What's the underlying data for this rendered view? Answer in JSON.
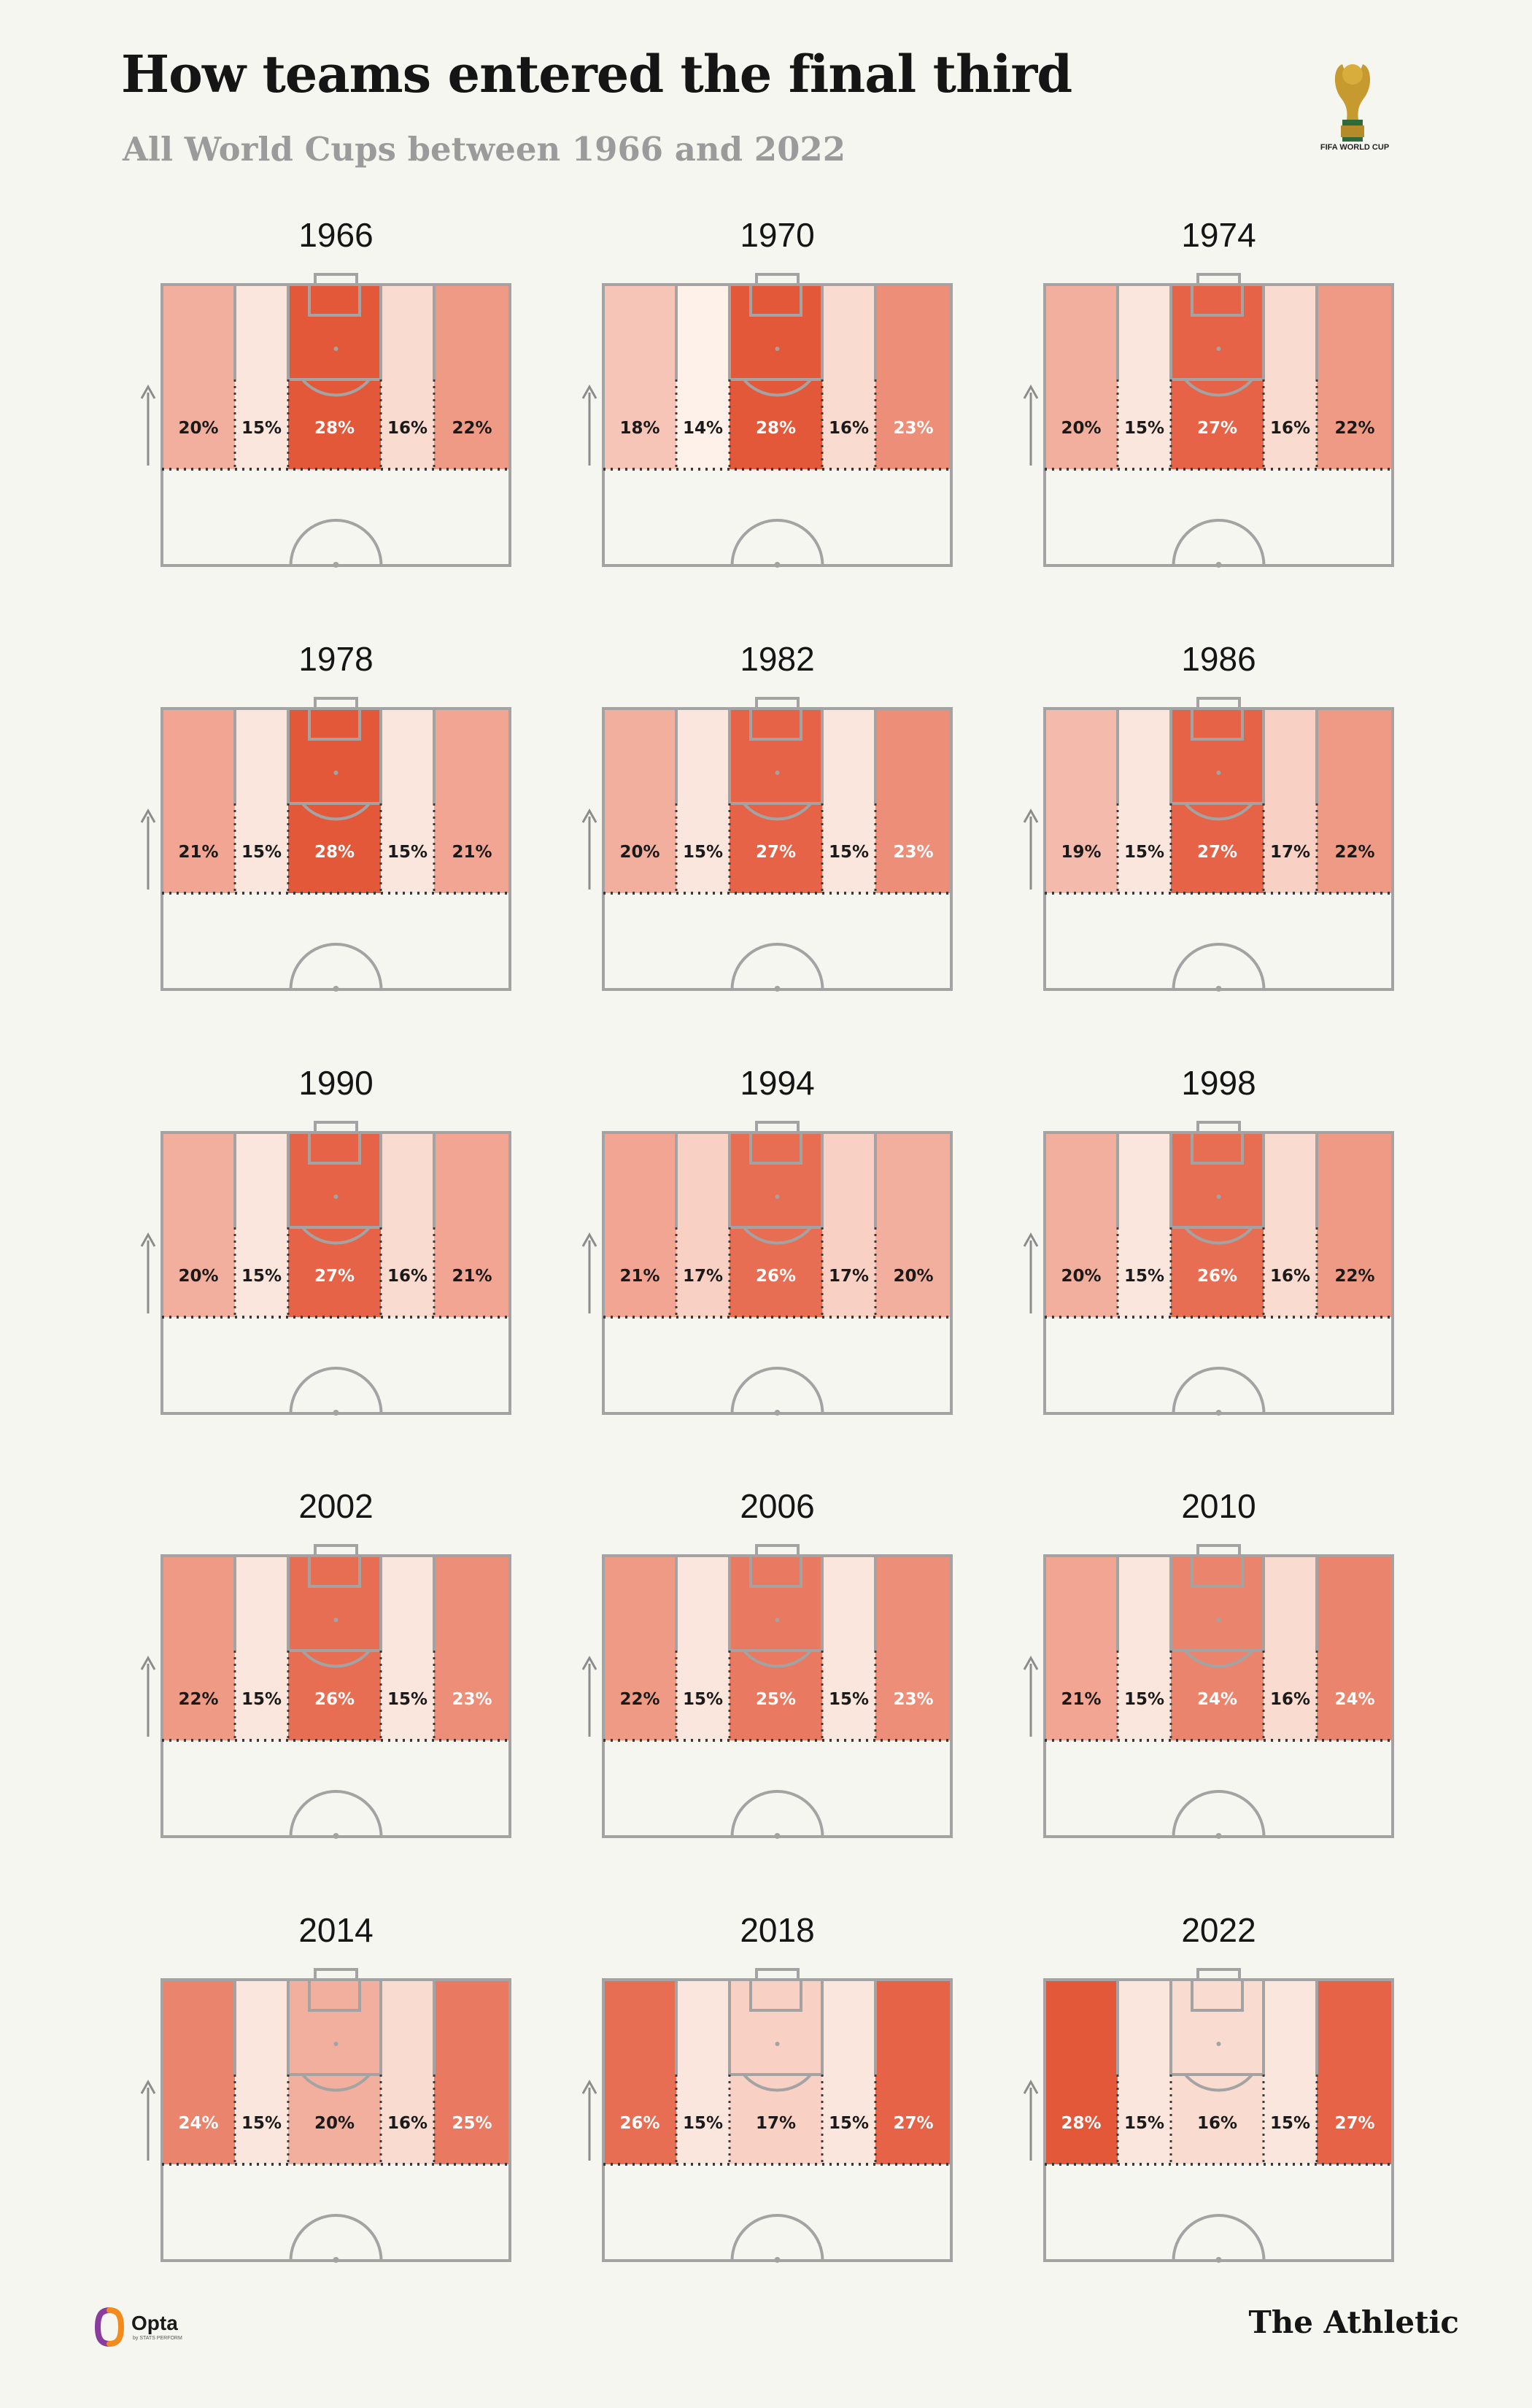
{
  "header": {
    "title": "How teams entered the final third",
    "subtitle": "All World Cups between 1966 and 2022",
    "logo_text": "FIFA WORLD CUP"
  },
  "footer": {
    "opta": "Opta",
    "opta_sub": "by STATS PERFORM",
    "publisher": "The Athletic"
  },
  "colors": {
    "background": "#f6f6f1",
    "scale_low": "#fdf1e9",
    "scale_high": "#e4583a",
    "pitch_lines": "#a3a3a3"
  },
  "chart_data": {
    "type": "heatmap",
    "columns": [
      "Left wing",
      "Left half-space",
      "Centre",
      "Right half-space",
      "Right wing"
    ],
    "panels": [
      {
        "year": "1966",
        "values": [
          20,
          15,
          28,
          16,
          22
        ]
      },
      {
        "year": "1970",
        "values": [
          18,
          14,
          28,
          16,
          23
        ]
      },
      {
        "year": "1974",
        "values": [
          20,
          15,
          27,
          16,
          22
        ]
      },
      {
        "year": "1978",
        "values": [
          21,
          15,
          28,
          15,
          21
        ]
      },
      {
        "year": "1982",
        "values": [
          20,
          15,
          27,
          15,
          23
        ]
      },
      {
        "year": "1986",
        "values": [
          19,
          15,
          27,
          17,
          22
        ]
      },
      {
        "year": "1990",
        "values": [
          20,
          15,
          27,
          16,
          21
        ]
      },
      {
        "year": "1994",
        "values": [
          21,
          17,
          26,
          17,
          20
        ]
      },
      {
        "year": "1998",
        "values": [
          20,
          15,
          26,
          16,
          22
        ]
      },
      {
        "year": "2002",
        "values": [
          22,
          15,
          26,
          15,
          23
        ]
      },
      {
        "year": "2006",
        "values": [
          22,
          15,
          25,
          15,
          23
        ]
      },
      {
        "year": "2010",
        "values": [
          21,
          15,
          24,
          16,
          24
        ]
      },
      {
        "year": "2014",
        "values": [
          24,
          15,
          20,
          16,
          25
        ]
      },
      {
        "year": "2018",
        "values": [
          26,
          15,
          17,
          15,
          27
        ]
      },
      {
        "year": "2022",
        "values": [
          28,
          15,
          16,
          15,
          27
        ]
      }
    ],
    "unit": "%",
    "value_range": [
      14,
      28
    ]
  }
}
